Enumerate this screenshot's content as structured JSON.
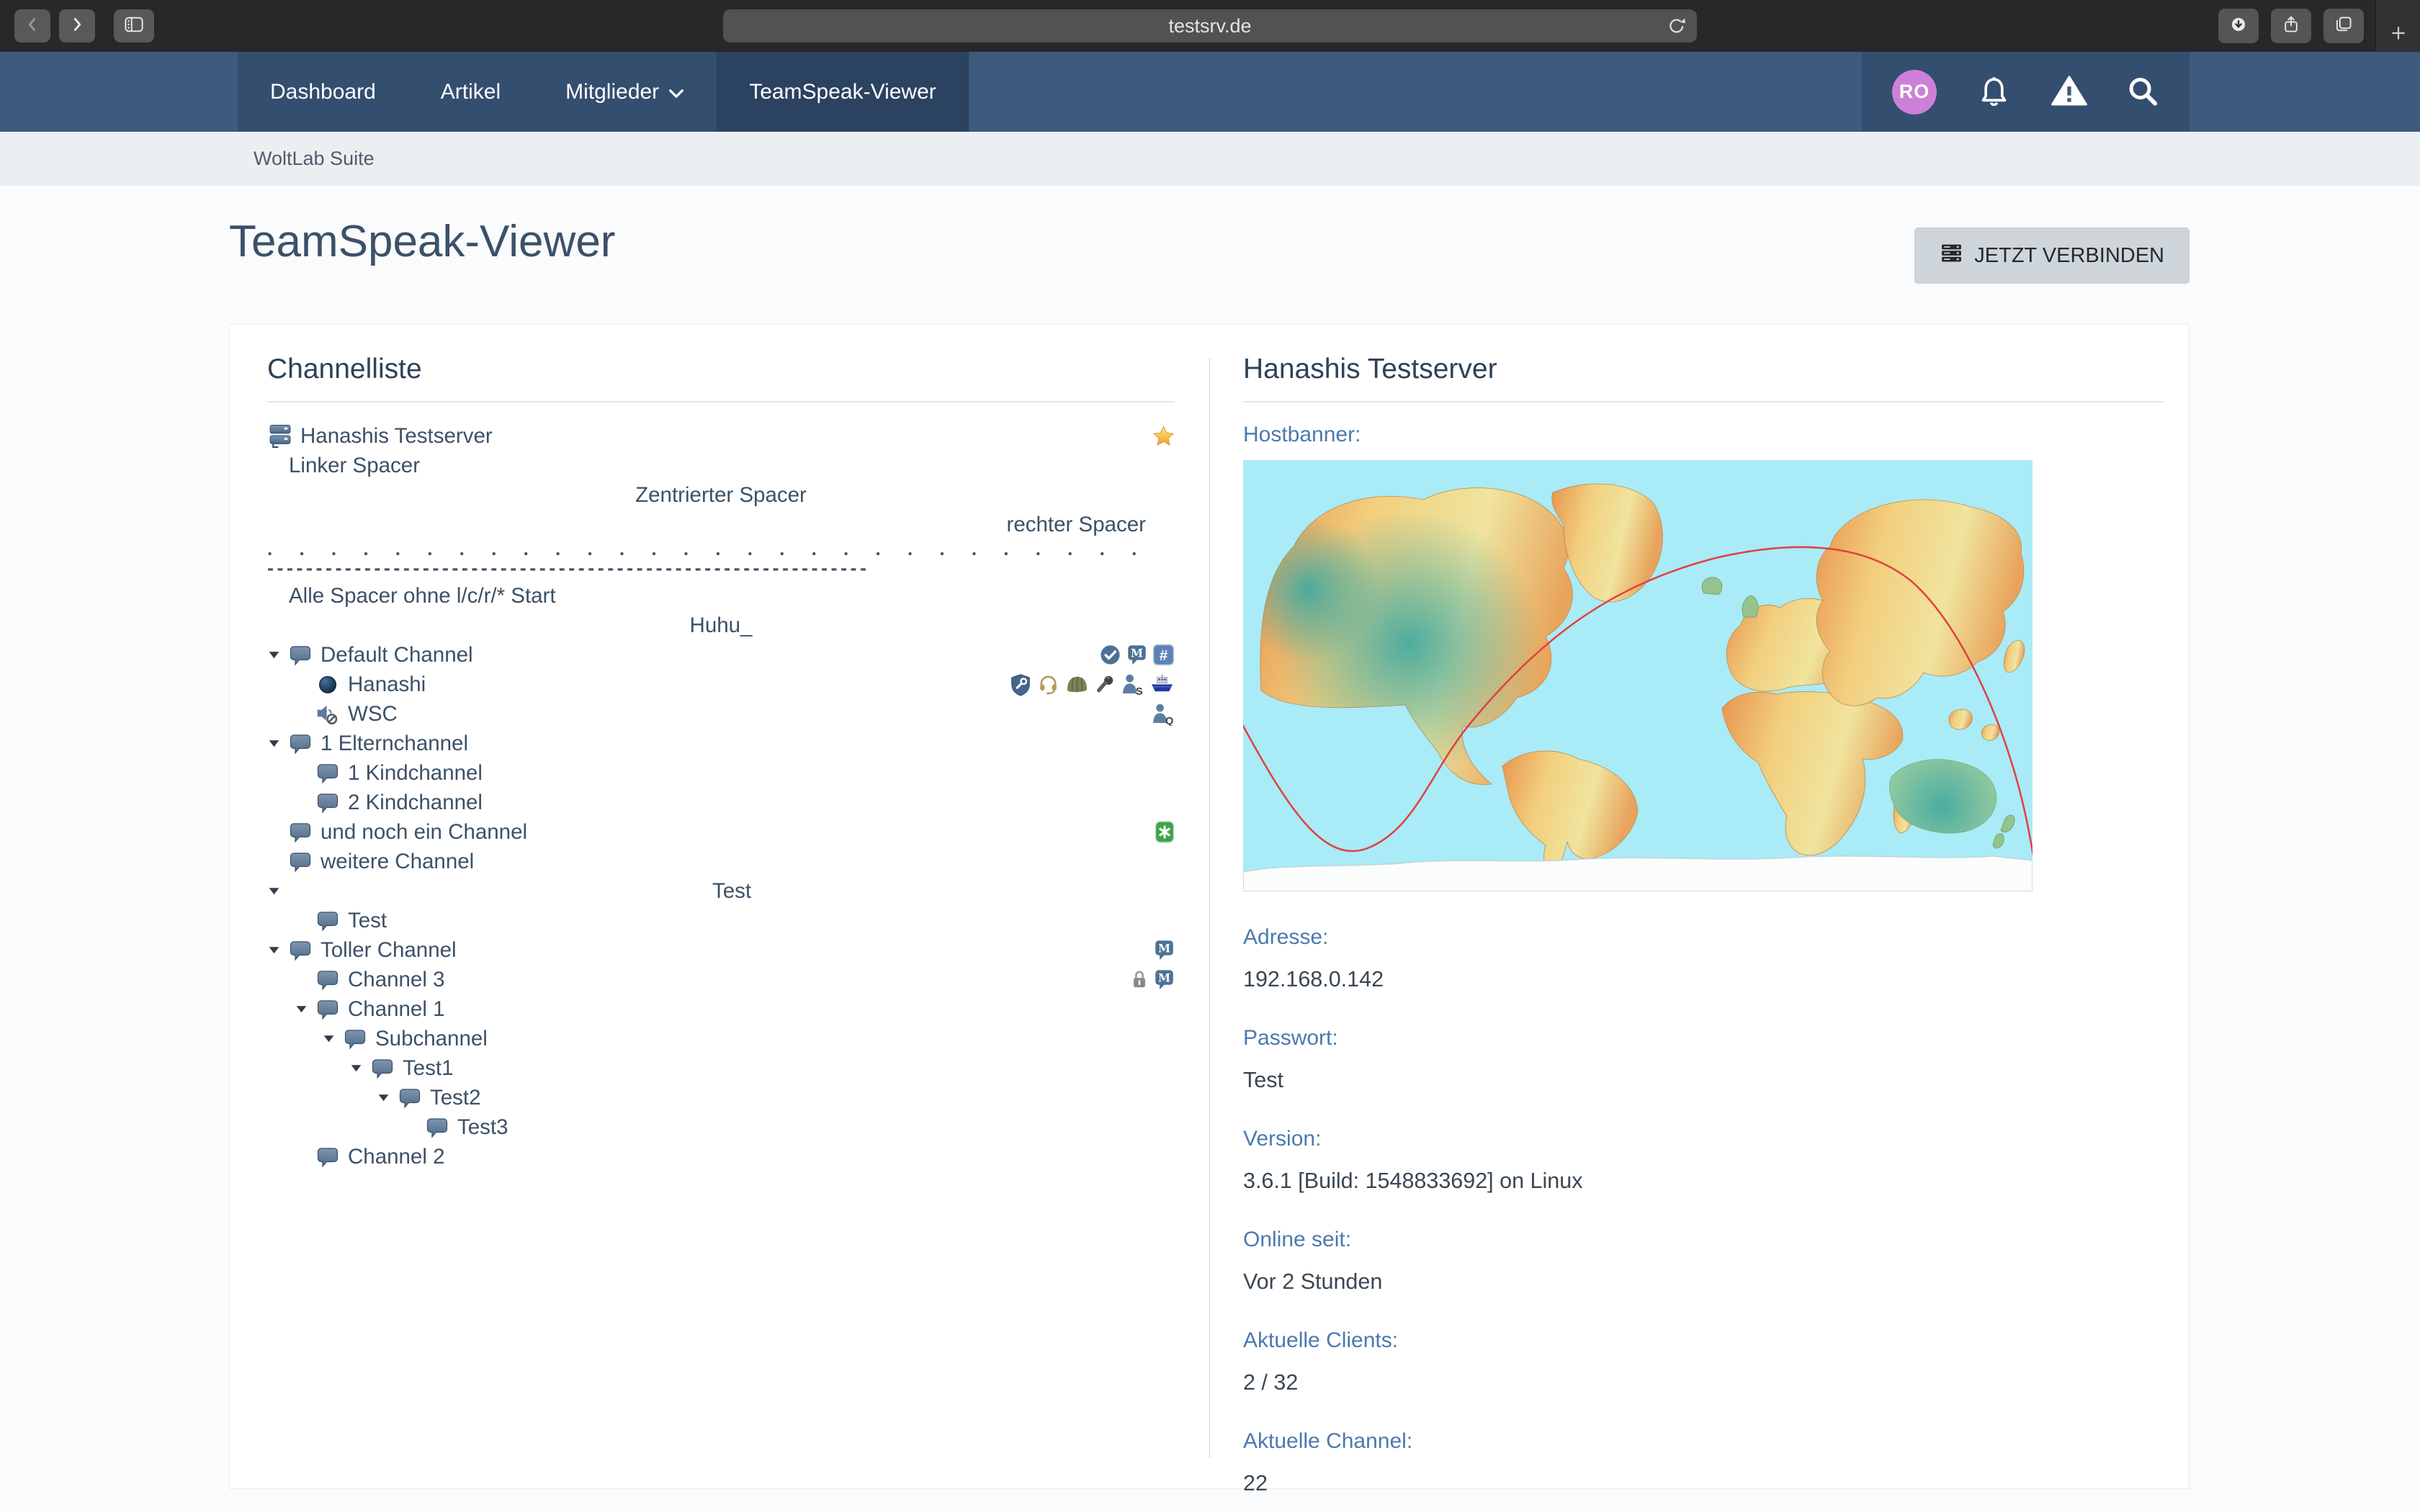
{
  "browser": {
    "url": "testsrv.de",
    "controls": [
      "back",
      "forward",
      "sidebar",
      "reload",
      "download",
      "share",
      "tabs",
      "new-tab"
    ]
  },
  "nav": {
    "items": [
      {
        "label": "Dashboard",
        "active": false,
        "dropdown": false
      },
      {
        "label": "Artikel",
        "active": false,
        "dropdown": false
      },
      {
        "label": "Mitglieder",
        "active": false,
        "dropdown": true
      },
      {
        "label": "TeamSpeak-Viewer",
        "active": true,
        "dropdown": false
      }
    ],
    "avatar_initials": "RO"
  },
  "breadcrumb": "WoltLab Suite",
  "page": {
    "title": "TeamSpeak-Viewer",
    "connect_button": "JETZT VERBINDEN"
  },
  "channel_list": {
    "heading": "Channelliste",
    "rows": [
      {
        "type": "server",
        "level": 0,
        "label": "Hanashis Testserver",
        "icon": "server",
        "badges": [
          "star"
        ]
      },
      {
        "type": "spacer",
        "level": 1,
        "align": "left",
        "label": "Linker Spacer"
      },
      {
        "type": "spacer",
        "level": 1,
        "align": "center",
        "label": "Zentrierter Spacer"
      },
      {
        "type": "spacer",
        "level": 1,
        "align": "right",
        "label": "rechter Spacer"
      },
      {
        "type": "dash",
        "level": 1,
        "line1": ". . . . . . . . . . . . . . . . . . . . . . . . . . . . . . . . . . . . . . . . . . . . . . . .",
        "line2": "--------------------------------------------------------------"
      },
      {
        "type": "spacer",
        "level": 1,
        "align": "left",
        "label": "Alle Spacer ohne l/c/r/* Start"
      },
      {
        "type": "spacer",
        "level": 1,
        "align": "center",
        "label": "Huhu_"
      },
      {
        "type": "channel",
        "level": 1,
        "expander": true,
        "label": "Default Channel",
        "badges": [
          "check",
          "m",
          "hash"
        ]
      },
      {
        "type": "client",
        "level": 2,
        "icon": "client",
        "label": "Hanashi",
        "badges": [
          "shield",
          "headset",
          "helmet",
          "mic",
          "person-s",
          "ship"
        ]
      },
      {
        "type": "client",
        "level": 2,
        "icon": "speaker-muted",
        "label": "WSC",
        "badges": [
          "person-q"
        ]
      },
      {
        "type": "channel",
        "level": 1,
        "expander": true,
        "label": "1 Elternchannel",
        "badges": []
      },
      {
        "type": "channel",
        "level": 2,
        "expander": false,
        "label": "1 Kindchannel",
        "badges": []
      },
      {
        "type": "channel",
        "level": 2,
        "expander": false,
        "label": "2 Kindchannel",
        "badges": []
      },
      {
        "type": "channel",
        "level": 1,
        "expander": false,
        "label": "und noch ein Channel",
        "badges": [
          "asterisk"
        ]
      },
      {
        "type": "channel",
        "level": 1,
        "expander": false,
        "label": "weitere Channel",
        "badges": []
      },
      {
        "type": "spacer",
        "level": 1,
        "expander": true,
        "align": "center",
        "label": "Test"
      },
      {
        "type": "channel",
        "level": 2,
        "expander": false,
        "label": "Test",
        "badges": []
      },
      {
        "type": "channel",
        "level": 1,
        "expander": true,
        "label": "Toller Channel",
        "badges": [
          "m"
        ]
      },
      {
        "type": "channel",
        "level": 2,
        "expander": false,
        "label": "Channel 3",
        "badges": [
          "lock",
          "m"
        ]
      },
      {
        "type": "channel",
        "level": 2,
        "expander": true,
        "label": "Channel 1",
        "badges": []
      },
      {
        "type": "channel",
        "level": 3,
        "expander": true,
        "label": "Subchannel",
        "badges": []
      },
      {
        "type": "channel",
        "level": 4,
        "expander": true,
        "label": "Test1",
        "badges": []
      },
      {
        "type": "channel",
        "level": 5,
        "expander": true,
        "label": "Test2",
        "badges": []
      },
      {
        "type": "channel",
        "level": 6,
        "expander": false,
        "label": "Test3",
        "badges": []
      },
      {
        "type": "channel",
        "level": 2,
        "expander": false,
        "label": "Channel 2",
        "badges": []
      }
    ]
  },
  "server_info": {
    "heading": "Hanashis Testserver",
    "hostbanner_label": "Hostbanner:",
    "fields": [
      {
        "label": "Adresse:",
        "value": "192.168.0.142"
      },
      {
        "label": "Passwort:",
        "value": "Test"
      },
      {
        "label": "Version:",
        "value": "3.6.1 [Build: 1548833692] on Linux"
      },
      {
        "label": "Online seit:",
        "value": "Vor 2 Stunden"
      },
      {
        "label": "Aktuelle Clients:",
        "value": "2 / 32"
      },
      {
        "label": "Aktuelle Channel:",
        "value": "22"
      }
    ]
  },
  "colors": {
    "nav_bar": "#3e5a7d",
    "nav_menu_block": "#344e6f",
    "nav_active_item": "#2b4260",
    "label_blue": "#4c79ae",
    "avatar_purple": "#cd80d8",
    "star_gold": "#f7c64a",
    "badge_green": "#3fa34a",
    "badge_blue": "#4d7095",
    "ocean_cyan": "#a9ebf6"
  }
}
